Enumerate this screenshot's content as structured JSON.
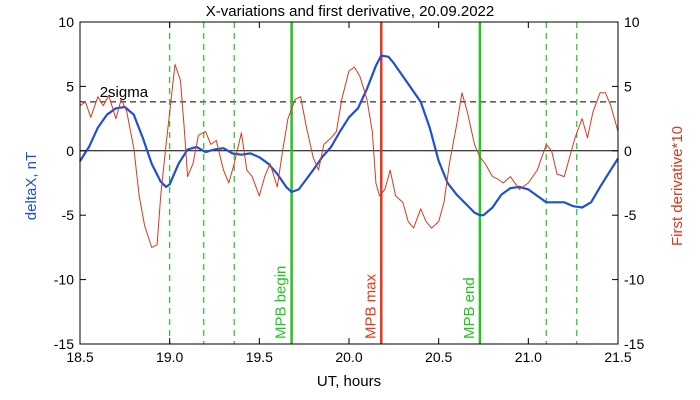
{
  "chart_data": {
    "type": "line",
    "title": "X-variations and first derivative, 20.09.2022",
    "xlabel": "UT, hours",
    "ylabel_left": "deltaX, nT",
    "ylabel_right": "First derivative*10",
    "xlim": [
      18.5,
      21.5
    ],
    "ylim": [
      -15,
      10
    ],
    "x_ticks": [
      18.5,
      19.0,
      19.5,
      20.0,
      20.5,
      21.0,
      21.5
    ],
    "y_ticks": [
      -15,
      -10,
      -5,
      0,
      5,
      10
    ],
    "x_tick_labels": [
      "18.5",
      "19.0",
      "19.5",
      "20.0",
      "20.5",
      "21.0",
      "21.5"
    ],
    "y_tick_labels": [
      "-15",
      "-10",
      "-5",
      "0",
      "5",
      "10"
    ],
    "zero_line": 0,
    "threshold": {
      "label": "2sigma",
      "value": 3.8,
      "color": "#000000",
      "style": "dashed"
    },
    "series": [
      {
        "name": "deltaX, nT",
        "color": "#1f4fd6",
        "axis": "left",
        "x": [
          18.5,
          18.55,
          18.6,
          18.65,
          18.7,
          18.75,
          18.8,
          18.85,
          18.9,
          18.95,
          18.98,
          19.0,
          19.05,
          19.1,
          19.15,
          19.2,
          19.25,
          19.3,
          19.35,
          19.4,
          19.45,
          19.5,
          19.55,
          19.6,
          19.65,
          19.68,
          19.72,
          19.8,
          19.85,
          19.9,
          19.95,
          20.0,
          20.05,
          20.1,
          20.15,
          20.18,
          20.22,
          20.25,
          20.3,
          20.35,
          20.4,
          20.45,
          20.5,
          20.55,
          20.6,
          20.65,
          20.7,
          20.73,
          20.75,
          20.8,
          20.85,
          20.9,
          20.95,
          21.0,
          21.05,
          21.1,
          21.15,
          21.2,
          21.25,
          21.3,
          21.35,
          21.4,
          21.45,
          21.5
        ],
        "y": [
          -0.8,
          0.3,
          1.8,
          2.8,
          3.3,
          3.4,
          2.8,
          1.0,
          -1.0,
          -2.4,
          -2.8,
          -2.6,
          -1.0,
          0.1,
          0.3,
          -0.1,
          0.1,
          0.2,
          -0.2,
          -0.3,
          -0.2,
          -0.5,
          -1.0,
          -1.8,
          -2.8,
          -3.2,
          -3.0,
          -1.5,
          -0.5,
          0.3,
          1.5,
          2.6,
          3.3,
          4.8,
          6.6,
          7.4,
          7.3,
          6.8,
          5.8,
          4.8,
          3.8,
          1.8,
          -0.8,
          -2.5,
          -3.4,
          -4.1,
          -4.8,
          -5.0,
          -5.0,
          -4.4,
          -3.4,
          -2.9,
          -2.8,
          -3.0,
          -3.5,
          -4.0,
          -4.0,
          -4.0,
          -4.3,
          -4.4,
          -4.0,
          -2.8,
          -1.7,
          -0.6
        ]
      },
      {
        "name": "First derivative*10",
        "color": "#d63a1f",
        "axis": "right",
        "x": [
          18.5,
          18.53,
          18.56,
          18.6,
          18.63,
          18.66,
          18.7,
          18.73,
          18.76,
          18.8,
          18.83,
          18.86,
          18.9,
          18.93,
          18.95,
          18.98,
          19.0,
          19.03,
          19.06,
          19.08,
          19.1,
          19.13,
          19.16,
          19.2,
          19.23,
          19.26,
          19.3,
          19.33,
          19.36,
          19.4,
          19.43,
          19.46,
          19.5,
          19.53,
          19.56,
          19.6,
          19.63,
          19.66,
          19.7,
          19.73,
          19.76,
          19.8,
          19.83,
          19.86,
          19.9,
          19.93,
          19.96,
          20.0,
          20.03,
          20.06,
          20.1,
          20.13,
          20.15,
          20.17,
          20.2,
          20.23,
          20.26,
          20.3,
          20.33,
          20.36,
          20.4,
          20.43,
          20.46,
          20.5,
          20.53,
          20.56,
          20.6,
          20.63,
          20.66,
          20.7,
          20.73,
          20.76,
          20.8,
          20.83,
          20.86,
          20.9,
          20.95,
          21.0,
          21.05,
          21.1,
          21.13,
          21.16,
          21.2,
          21.23,
          21.26,
          21.3,
          21.33,
          21.36,
          21.4,
          21.43,
          21.46,
          21.5
        ],
        "y": [
          3.5,
          3.8,
          2.6,
          4.2,
          3.5,
          4.3,
          2.5,
          4.0,
          3.1,
          0.2,
          -3.5,
          -5.8,
          -7.5,
          -7.3,
          -3.5,
          0.5,
          3.0,
          6.7,
          5.5,
          2.0,
          -2.0,
          -1.0,
          1.2,
          1.5,
          0.5,
          0.8,
          -1.5,
          -2.5,
          -1.0,
          1.4,
          -1.5,
          -2.0,
          -3.5,
          -2.0,
          -1.0,
          -2.8,
          0.0,
          2.5,
          4.0,
          4.2,
          2.0,
          -0.5,
          -1.5,
          0.5,
          1.0,
          1.5,
          4.0,
          6.2,
          6.5,
          5.8,
          4.0,
          1.5,
          -2.5,
          -3.5,
          -3.0,
          -1.5,
          -3.5,
          -4.0,
          -5.5,
          -6.0,
          -4.5,
          -5.5,
          -6.0,
          -5.5,
          -4.0,
          -1.0,
          2.0,
          4.5,
          3.0,
          0.5,
          -0.5,
          -1.0,
          -2.0,
          -2.2,
          -2.5,
          -2.0,
          -3.0,
          -2.5,
          -1.5,
          0.5,
          0.0,
          -1.8,
          -2.0,
          -0.5,
          1.0,
          2.5,
          1.0,
          3.0,
          4.5,
          4.5,
          3.5,
          1.5
        ]
      }
    ],
    "vertical_lines": [
      {
        "x": 19.0,
        "color": "#22c522",
        "style": "dashed",
        "label": ""
      },
      {
        "x": 19.19,
        "color": "#22c522",
        "style": "dashed",
        "label": ""
      },
      {
        "x": 19.36,
        "color": "#22c522",
        "style": "dashed",
        "label": ""
      },
      {
        "x": 19.68,
        "color": "#22c522",
        "style": "solid",
        "label": "MPB begin"
      },
      {
        "x": 20.18,
        "color": "#e03a1f",
        "style": "solid",
        "label": "MPB max"
      },
      {
        "x": 20.73,
        "color": "#22c522",
        "style": "solid",
        "label": "MPB end"
      },
      {
        "x": 21.1,
        "color": "#22c522",
        "style": "dashed",
        "label": ""
      },
      {
        "x": 21.27,
        "color": "#22c522",
        "style": "dashed",
        "label": ""
      }
    ],
    "grid": false,
    "legend": "none"
  }
}
